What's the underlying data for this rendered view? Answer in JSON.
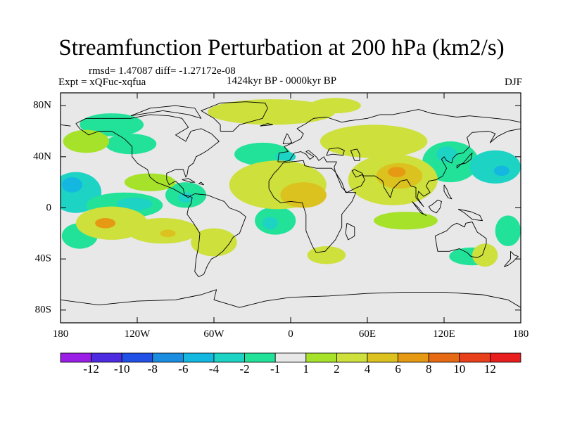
{
  "chart_data": {
    "type": "heatmap",
    "title": "Streamfunction Perturbation at 200 hPa (km2/s)",
    "stats_text": "rmsd= 1.47087 diff= -1.27172e-08",
    "experiment_text": "Expt = xQFuc-xqfua",
    "period_text": "1424kyr BP - 0000kyr BP",
    "season": "DJF",
    "x_ticks": [
      "180",
      "120W",
      "60W",
      "0",
      "60E",
      "120E",
      "180"
    ],
    "y_ticks": [
      "80N",
      "40N",
      "0",
      "40S",
      "80S"
    ],
    "xlim": [
      -180,
      180
    ],
    "ylim": [
      -90,
      90
    ],
    "colorbar_labels": [
      "-12",
      "-10",
      "-8",
      "-6",
      "-4",
      "-2",
      "-1",
      "1",
      "2",
      "4",
      "6",
      "8",
      "10",
      "12"
    ],
    "colorbar_colors": [
      "#9b1ee6",
      "#4c2be0",
      "#2050e6",
      "#1a8de0",
      "#13b7e0",
      "#1cd3c4",
      "#22e29a",
      "#e8e8e8",
      "#a6e22a",
      "#cde03c",
      "#dcc21e",
      "#e69a14",
      "#e66a14",
      "#e8401a",
      "#e81e1e"
    ],
    "features": [
      {
        "lon": -168,
        "lat": 12,
        "rx": 20,
        "ry": 16,
        "level": -4
      },
      {
        "lon": -171,
        "lat": 18,
        "rx": 8,
        "ry": 6,
        "level": -6
      },
      {
        "lon": -165,
        "lat": -22,
        "rx": 14,
        "ry": 10,
        "level": -2
      },
      {
        "lon": -130,
        "lat": 2,
        "rx": 30,
        "ry": 10,
        "level": -2
      },
      {
        "lon": -122,
        "lat": 3,
        "rx": 14,
        "ry": 5,
        "level": -4
      },
      {
        "lon": -82,
        "lat": 10,
        "rx": 16,
        "ry": 10,
        "level": -2
      },
      {
        "lon": -82,
        "lat": 8,
        "rx": 6,
        "ry": 4,
        "level": -4
      },
      {
        "lon": -12,
        "lat": -10,
        "rx": 16,
        "ry": 11,
        "level": -2
      },
      {
        "lon": -16,
        "lat": -12,
        "rx": 6,
        "ry": 5,
        "level": -4
      },
      {
        "lon": -22,
        "lat": 42,
        "rx": 22,
        "ry": 9,
        "level": -2
      },
      {
        "lon": -4,
        "lat": 40,
        "rx": 8,
        "ry": 4,
        "level": -4
      },
      {
        "lon": 125,
        "lat": 36,
        "rx": 22,
        "ry": 16,
        "level": -2
      },
      {
        "lon": 122,
        "lat": 42,
        "rx": 8,
        "ry": 6,
        "level": -4
      },
      {
        "lon": 160,
        "lat": 32,
        "rx": 20,
        "ry": 13,
        "level": -4
      },
      {
        "lon": 165,
        "lat": 29,
        "rx": 6,
        "ry": 4,
        "level": -6
      },
      {
        "lon": 170,
        "lat": -18,
        "rx": 10,
        "ry": 12,
        "level": -2
      },
      {
        "lon": 142,
        "lat": -38,
        "rx": 18,
        "ry": 7,
        "level": -2
      },
      {
        "lon": -140,
        "lat": 65,
        "rx": 25,
        "ry": 9,
        "level": -2
      },
      {
        "lon": -125,
        "lat": 50,
        "rx": 20,
        "ry": 8,
        "level": -2
      },
      {
        "lon": -140,
        "lat": -12,
        "rx": 28,
        "ry": 13,
        "level": 2
      },
      {
        "lon": -145,
        "lat": -12,
        "rx": 8,
        "ry": 4,
        "level": 6
      },
      {
        "lon": -100,
        "lat": -18,
        "rx": 28,
        "ry": 10,
        "level": 2
      },
      {
        "lon": -96,
        "lat": -20,
        "rx": 6,
        "ry": 3,
        "level": 4
      },
      {
        "lon": -60,
        "lat": -27,
        "rx": 18,
        "ry": 11,
        "level": 2
      },
      {
        "lon": -160,
        "lat": 52,
        "rx": 18,
        "ry": 9,
        "level": 1
      },
      {
        "lon": -110,
        "lat": 20,
        "rx": 20,
        "ry": 7,
        "level": 1
      },
      {
        "lon": -10,
        "lat": 18,
        "rx": 38,
        "ry": 19,
        "level": 2
      },
      {
        "lon": 10,
        "lat": 10,
        "rx": 18,
        "ry": 10,
        "level": 4
      },
      {
        "lon": 80,
        "lat": 22,
        "rx": 35,
        "ry": 20,
        "level": 2
      },
      {
        "lon": 85,
        "lat": 25,
        "rx": 18,
        "ry": 10,
        "level": 4
      },
      {
        "lon": 83,
        "lat": 28,
        "rx": 7,
        "ry": 4,
        "level": 6
      },
      {
        "lon": 65,
        "lat": 52,
        "rx": 42,
        "ry": 13,
        "level": 2
      },
      {
        "lon": 28,
        "lat": -37,
        "rx": 15,
        "ry": 7,
        "level": 2
      },
      {
        "lon": 152,
        "lat": -37,
        "rx": 10,
        "ry": 9,
        "level": 2
      },
      {
        "lon": -15,
        "lat": 75,
        "rx": 50,
        "ry": 10,
        "level": 2
      },
      {
        "lon": 35,
        "lat": 80,
        "rx": 20,
        "ry": 6,
        "level": 2
      },
      {
        "lon": 90,
        "lat": -10,
        "rx": 25,
        "ry": 7,
        "level": 1
      }
    ]
  }
}
